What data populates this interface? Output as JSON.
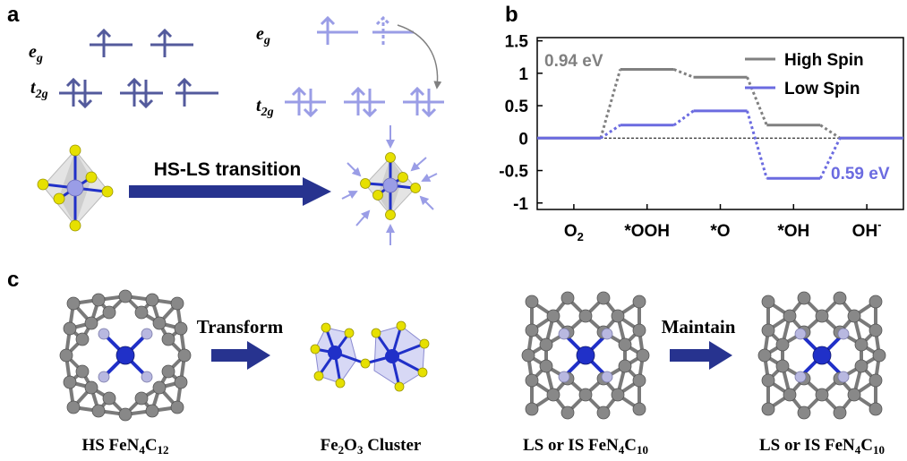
{
  "panels": {
    "a": {
      "label": "a",
      "hs": {
        "eg": "e",
        "eg_sub": "g",
        "t2g": "t",
        "t2g_sub": "2g"
      },
      "ls": {
        "eg": "e",
        "eg_sub": "g",
        "t2g": "t",
        "t2g_sub": "2g"
      },
      "transition_label": "HS-LS transition"
    },
    "b": {
      "label": "b"
    },
    "c": {
      "label": "c",
      "transform_label": "Transform",
      "maintain_label": "Maintain",
      "captions": [
        {
          "main": "HS FeN",
          "s1": "4",
          "mid": "C",
          "s2": "12",
          "tail": ""
        },
        {
          "main": "Fe",
          "s1": "2",
          "mid": "O",
          "s2": "3",
          "tail": " Cluster"
        },
        {
          "main": "LS or IS FeN",
          "s1": "4",
          "mid": "C",
          "s2": "10",
          "tail": ""
        },
        {
          "main": "LS or IS FeN",
          "s1": "4",
          "mid": "C",
          "s2": "10",
          "tail": ""
        }
      ]
    }
  },
  "colors": {
    "hs_blue": "#535a9c",
    "ls_blue": "#9a9de6",
    "arrow_navy": "#27338f",
    "high_spin": "#808080",
    "low_spin": "#6b6be0",
    "sulfur": "#e6e000",
    "carbon": "#888888",
    "nitrogen": "#b8b8e0",
    "iron": "#2030c8"
  },
  "chart_data": {
    "type": "line",
    "categories": [
      "O2",
      "*OOH",
      "*O",
      "*OH",
      "OH-"
    ],
    "category_labels": [
      {
        "main": "O",
        "sub": "2",
        "sup": ""
      },
      {
        "main": "*OOH",
        "sub": "",
        "sup": ""
      },
      {
        "main": "*O",
        "sub": "",
        "sup": ""
      },
      {
        "main": "*OH",
        "sub": "",
        "sup": ""
      },
      {
        "main": "OH",
        "sub": "",
        "sup": "-"
      }
    ],
    "series": [
      {
        "name": "High Spin",
        "values": [
          0,
          1.06,
          0.94,
          0.2,
          0
        ]
      },
      {
        "name": "Low Spin",
        "values": [
          0,
          0.2,
          0.42,
          -0.62,
          0
        ]
      }
    ],
    "annotations": [
      {
        "text": "0.94 eV",
        "series": "High Spin"
      },
      {
        "text": "0.59 eV",
        "series": "Low Spin"
      }
    ],
    "yticks": [
      "1.5",
      "1",
      "0.5",
      "0",
      "-0.5",
      "-1"
    ],
    "ylim": [
      -1.1,
      1.55
    ],
    "legend": "top-right",
    "grid": false
  }
}
